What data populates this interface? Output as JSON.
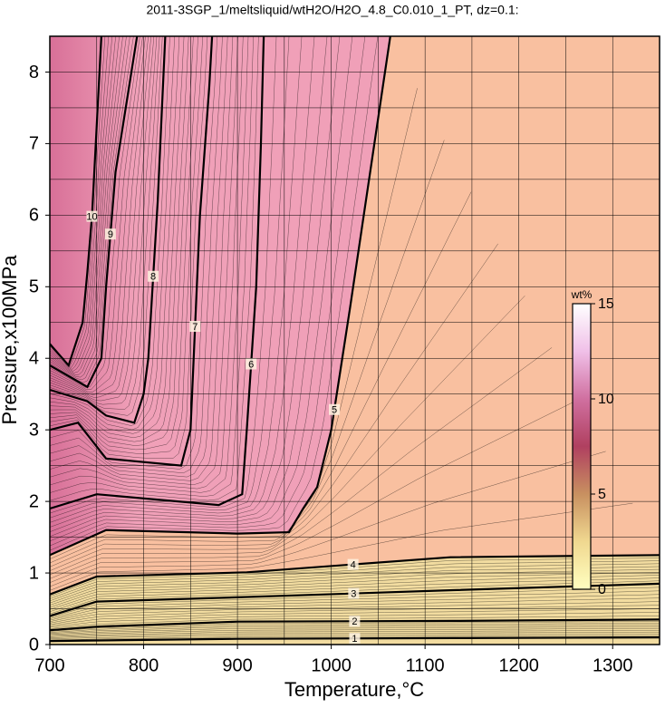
{
  "chart_data": {
    "type": "contour",
    "title": "2011-3SGP_1/meltsliquid/wtH2O/H2O_4.8_C0.010_1_PT, dz=0.1:",
    "xlabel": "Temperature,°C",
    "ylabel": "Pressure,x100MPa",
    "xlim": [
      700,
      1350
    ],
    "ylim": [
      0,
      8.5
    ],
    "xticks": [
      700,
      800,
      900,
      1000,
      1100,
      1200,
      1300
    ],
    "yticks": [
      0,
      1,
      2,
      3,
      4,
      5,
      6,
      7,
      8
    ],
    "grid": true,
    "contours": [
      {
        "level": 1,
        "x": [
          700,
          900,
          1130,
          1350
        ],
        "y": [
          0.05,
          0.08,
          0.09,
          0.1
        ]
      },
      {
        "level": 2,
        "x": [
          700,
          750,
          900,
          1130,
          1350
        ],
        "y": [
          0.2,
          0.25,
          0.32,
          0.33,
          0.35
        ]
      },
      {
        "level": 3,
        "x": [
          700,
          750,
          900,
          1130,
          1350
        ],
        "y": [
          0.4,
          0.6,
          0.66,
          0.76,
          0.85
        ]
      },
      {
        "level": 4,
        "x": [
          700,
          750,
          910,
          1127,
          1350
        ],
        "y": [
          0.7,
          0.95,
          1.01,
          1.22,
          1.25
        ]
      },
      {
        "level": 5,
        "x": [
          700,
          760,
          900,
          955,
          970,
          985,
          1000,
          1020,
          1063
        ],
        "y": [
          1.25,
          1.6,
          1.55,
          1.57,
          1.9,
          2.2,
          3.0,
          4.7,
          8.5
        ]
      },
      {
        "level": 6,
        "x": [
          700,
          750,
          880,
          905,
          910,
          920,
          925,
          928
        ],
        "y": [
          1.9,
          2.1,
          1.95,
          2.1,
          3.0,
          5.0,
          7.0,
          8.5
        ]
      },
      {
        "level": 7,
        "x": [
          700,
          730,
          760,
          840,
          850,
          855,
          860,
          870,
          873
        ],
        "y": [
          3.0,
          3.1,
          2.6,
          2.5,
          3.0,
          4.5,
          6.0,
          7.8,
          8.5
        ]
      },
      {
        "level": 8,
        "x": [
          700,
          740,
          760,
          790,
          800,
          805,
          815,
          823
        ],
        "y": [
          3.56,
          3.4,
          3.2,
          3.1,
          3.5,
          4.0,
          6.2,
          8.5
        ]
      },
      {
        "level": 9,
        "x": [
          700,
          740,
          755,
          760,
          770,
          793
        ],
        "y": [
          3.9,
          3.6,
          4.0,
          5.0,
          6.6,
          8.5
        ]
      },
      {
        "level": 10,
        "x": [
          700,
          720,
          735,
          740,
          745,
          755
        ],
        "y": [
          4.2,
          3.9,
          4.5,
          5.2,
          6.0,
          8.5
        ]
      }
    ],
    "colorbar": {
      "label": "wt%",
      "lim": [
        0,
        15
      ],
      "ticks": [
        0,
        5,
        10,
        15
      ],
      "colors": [
        "#ffffc0",
        "#f0d890",
        "#c89060",
        "#b04060",
        "#d070a0",
        "#f0c0e8",
        "#ffffff"
      ]
    },
    "fill_colors": {
      "low": "#f2dca0",
      "mid": "#f9c0a0",
      "high": "#f0a0b8"
    }
  }
}
